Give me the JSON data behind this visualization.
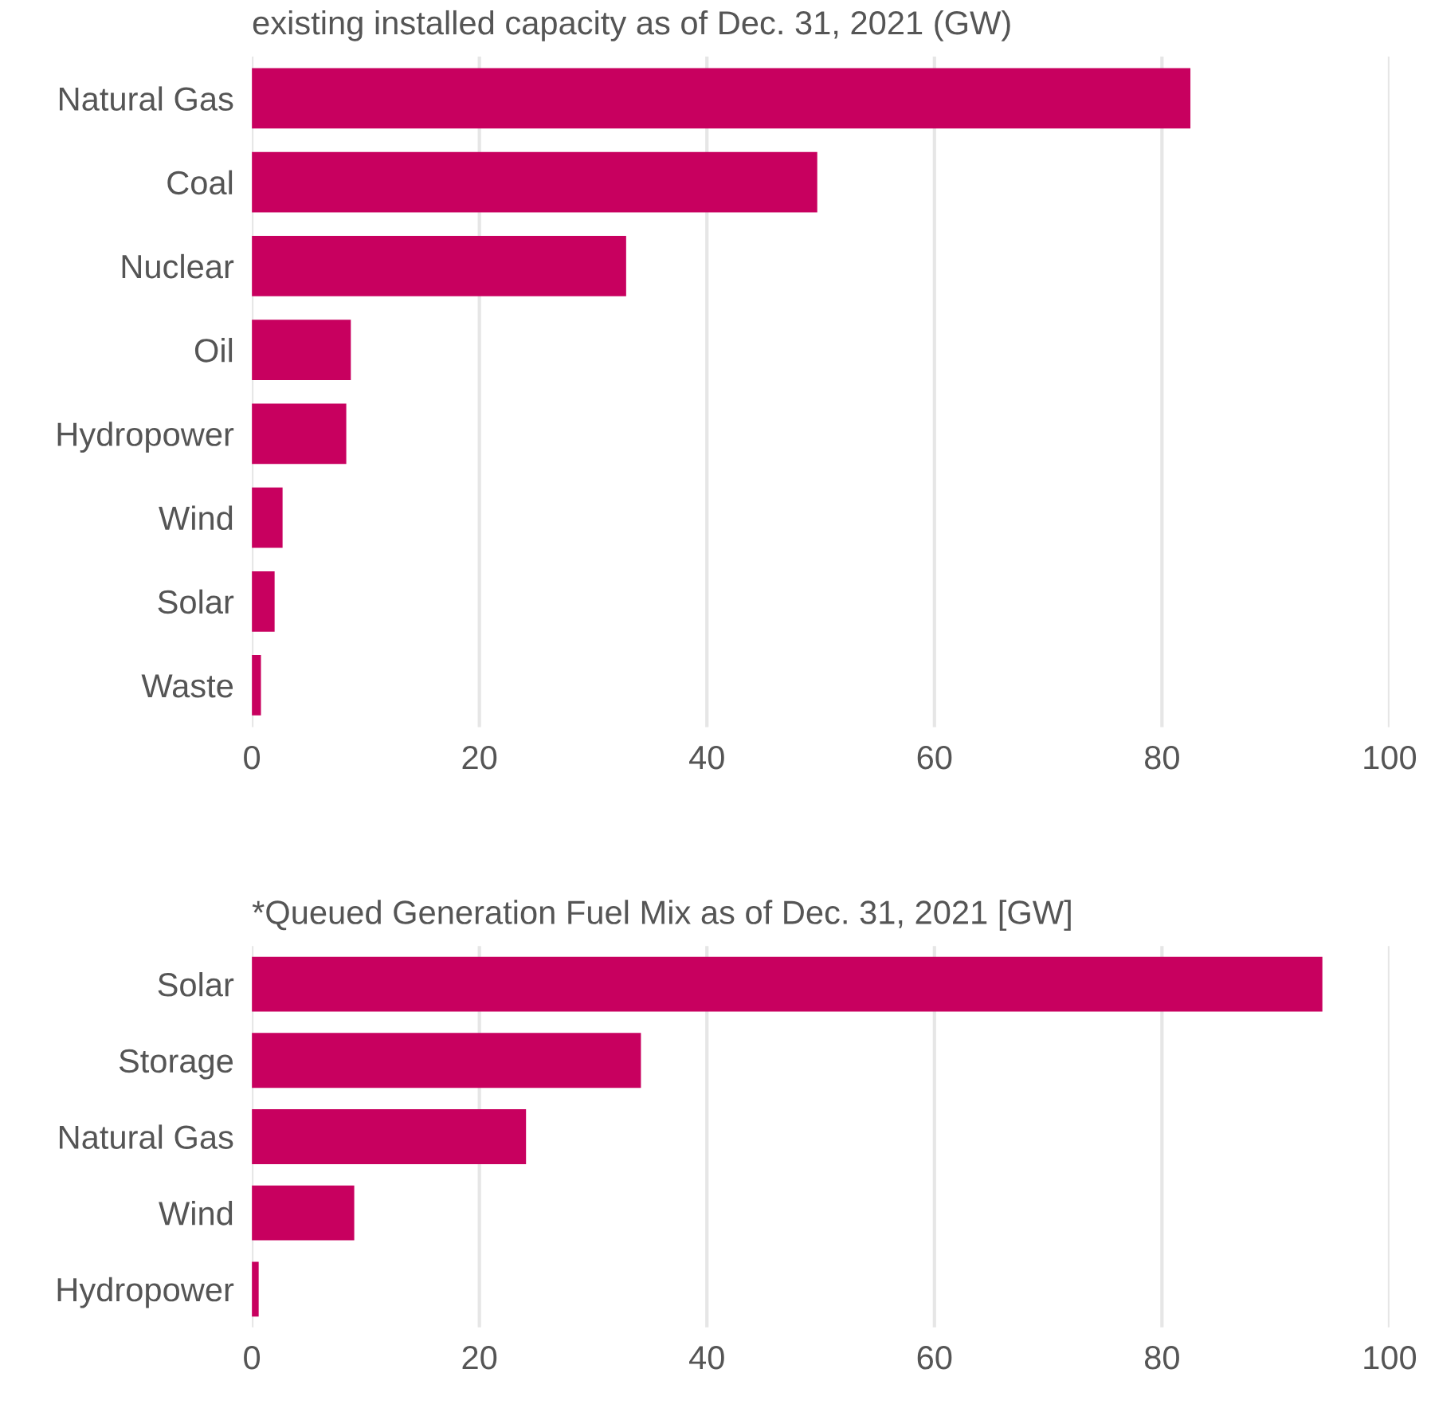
{
  "chart_data": [
    {
      "type": "bar",
      "orientation": "horizontal",
      "title": "existing installed capacity as of Dec. 31, 2021 (GW)",
      "categories": [
        "Natural Gas",
        "Coal",
        "Nuclear",
        "Oil",
        "Hydropower",
        "Wind",
        "Solar",
        "Waste"
      ],
      "values": [
        82.5,
        49.7,
        32.9,
        8.7,
        8.3,
        2.7,
        2.0,
        0.8
      ],
      "color": "#c8005f",
      "xlim": [
        0,
        100
      ],
      "xticks": [
        0,
        20,
        40,
        60,
        80,
        100
      ],
      "grid": "x",
      "legend": false
    },
    {
      "type": "bar",
      "orientation": "horizontal",
      "title": "*Queued Generation Fuel Mix as of Dec. 31, 2021 [GW]",
      "categories": [
        "Solar",
        "Storage",
        "Natural Gas",
        "Wind",
        "Hydropower"
      ],
      "values": [
        94.1,
        34.2,
        24.1,
        9.0,
        0.6
      ],
      "color": "#c8005f",
      "xlim": [
        0,
        100
      ],
      "xticks": [
        0,
        20,
        40,
        60,
        80,
        100
      ],
      "grid": "x",
      "legend": false
    }
  ]
}
